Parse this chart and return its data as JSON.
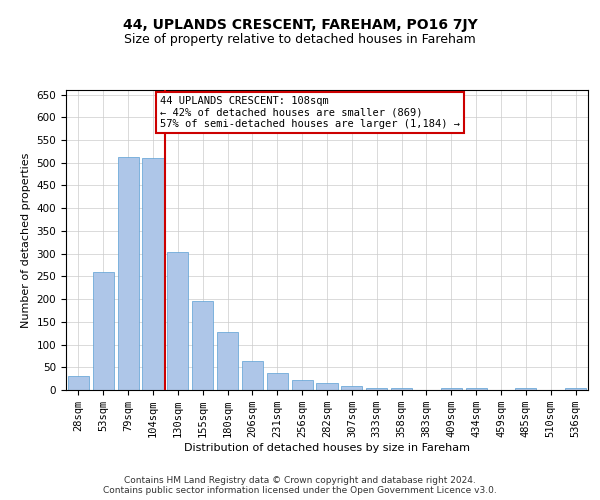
{
  "title": "44, UPLANDS CRESCENT, FAREHAM, PO16 7JY",
  "subtitle": "Size of property relative to detached houses in Fareham",
  "xlabel": "Distribution of detached houses by size in Fareham",
  "ylabel": "Number of detached properties",
  "footer_line1": "Contains HM Land Registry data © Crown copyright and database right 2024.",
  "footer_line2": "Contains public sector information licensed under the Open Government Licence v3.0.",
  "categories": [
    "28sqm",
    "53sqm",
    "79sqm",
    "104sqm",
    "130sqm",
    "155sqm",
    "180sqm",
    "206sqm",
    "231sqm",
    "256sqm",
    "282sqm",
    "307sqm",
    "333sqm",
    "358sqm",
    "383sqm",
    "409sqm",
    "434sqm",
    "459sqm",
    "485sqm",
    "510sqm",
    "536sqm"
  ],
  "values": [
    31,
    260,
    513,
    510,
    303,
    196,
    128,
    63,
    37,
    22,
    15,
    9,
    5,
    4,
    0,
    4,
    5,
    0,
    5,
    0,
    5
  ],
  "bar_color": "#aec6e8",
  "bar_edge_color": "#5a9fd4",
  "vline_color": "#cc0000",
  "vline_x_index": 3,
  "annotation_text": "44 UPLANDS CRESCENT: 108sqm\n← 42% of detached houses are smaller (869)\n57% of semi-detached houses are larger (1,184) →",
  "annotation_box_color": "#ffffff",
  "annotation_box_edge": "#cc0000",
  "ylim": [
    0,
    660
  ],
  "yticks": [
    0,
    50,
    100,
    150,
    200,
    250,
    300,
    350,
    400,
    450,
    500,
    550,
    600,
    650
  ],
  "grid_color": "#cccccc",
  "bg_color": "#ffffff",
  "title_fontsize": 10,
  "subtitle_fontsize": 9,
  "axis_label_fontsize": 8,
  "tick_fontsize": 7.5,
  "annotation_fontsize": 7.5,
  "footer_fontsize": 6.5
}
